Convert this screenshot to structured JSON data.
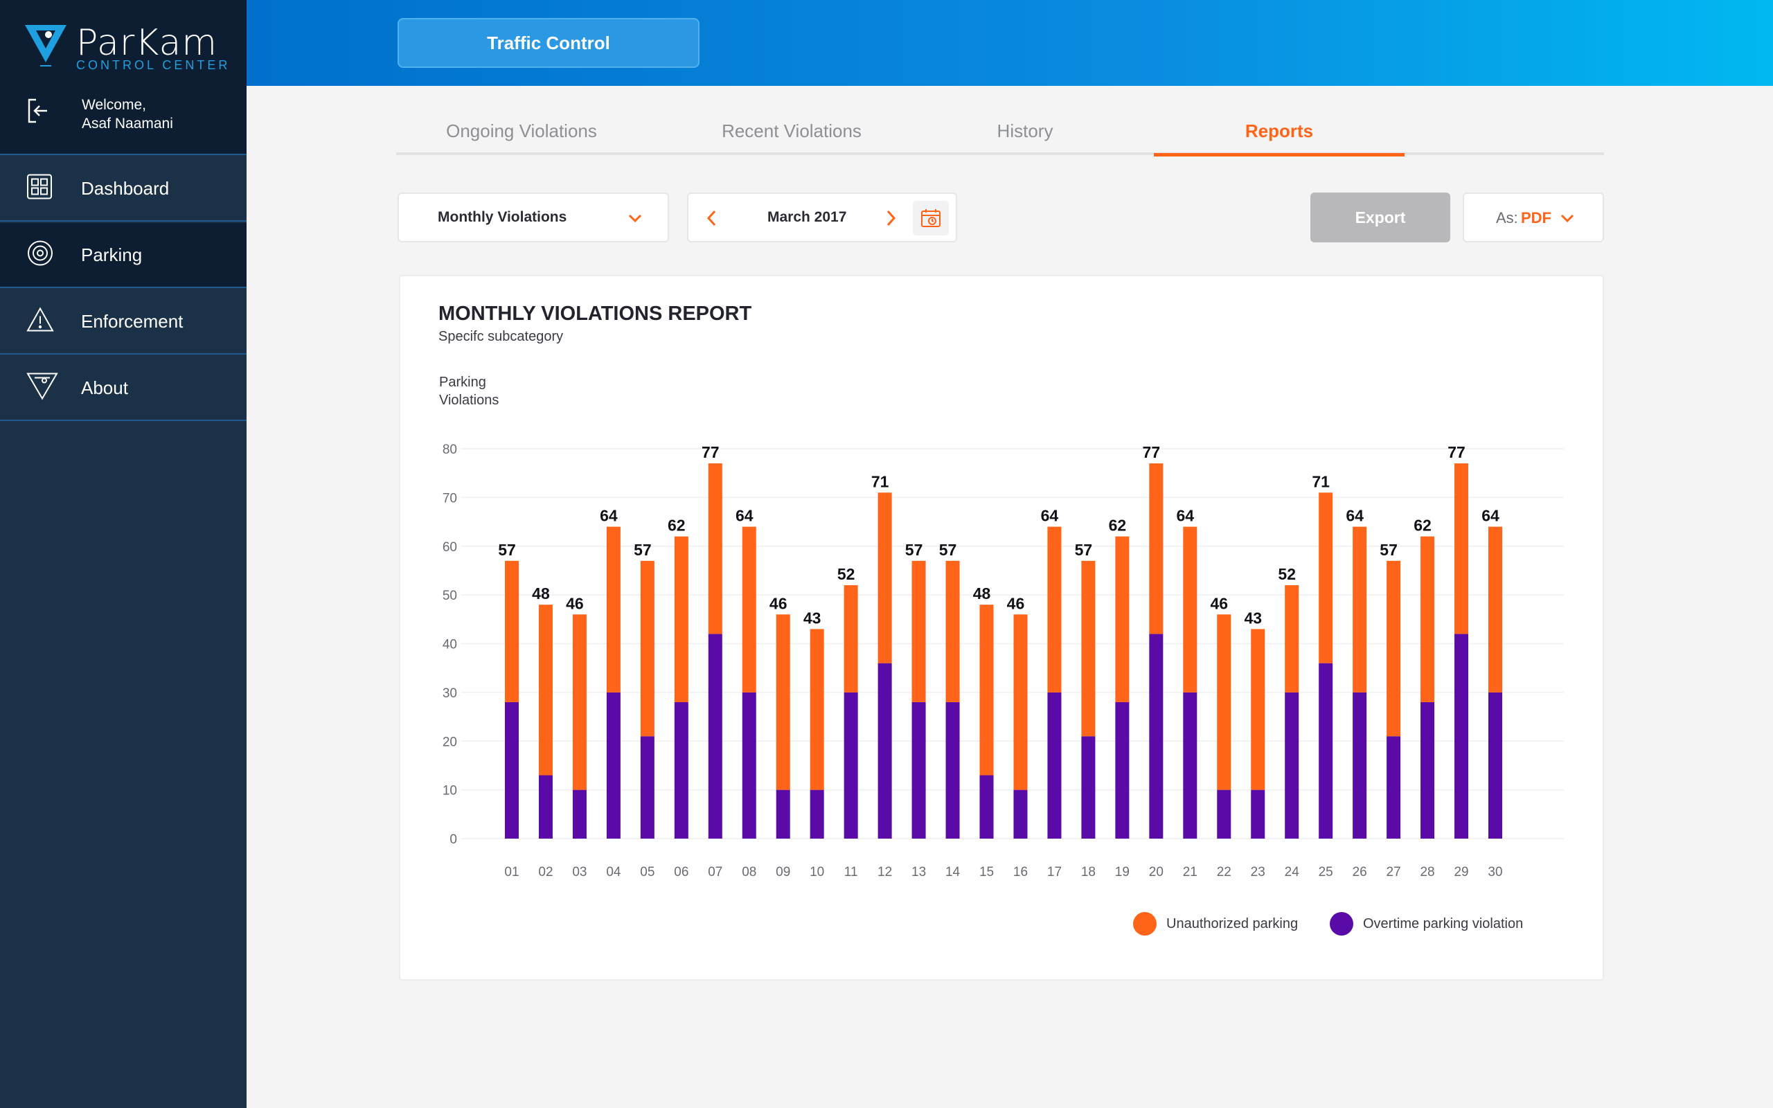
{
  "app": {
    "logo_text": "ParKam",
    "logo_sub": "CONTROL CENTER",
    "welcome_line1": "Welcome,",
    "welcome_line2": "Asaf Naamani"
  },
  "sidebar": {
    "items": [
      {
        "label": "Dashboard",
        "icon": "dashboard-icon"
      },
      {
        "label": "Parking",
        "icon": "target-icon"
      },
      {
        "label": "Enforcement",
        "icon": "warning-icon"
      },
      {
        "label": "About",
        "icon": "parkam-logo-icon"
      }
    ]
  },
  "header": {
    "button_label": "Traffic Control"
  },
  "tabs": [
    {
      "label": "Ongoing Violations"
    },
    {
      "label": "Recent Violations"
    },
    {
      "label": "History"
    },
    {
      "label": "Reports"
    }
  ],
  "controls": {
    "report_select": "Monthly Violations",
    "period": "March 2017",
    "export_label": "Export",
    "format_prefix": "As:",
    "format_value": "PDF"
  },
  "colors": {
    "accent": "#ff6418",
    "unauthorized": "#ff6418",
    "overtime": "#5a0aa6"
  },
  "chart_data": {
    "type": "bar",
    "stacked": true,
    "title": "MONTHLY VIOLATIONS REPORT",
    "subtitle": "Specifc subcategory",
    "ylabel_line1": "Parking",
    "ylabel_line2": "Violations",
    "ylim": [
      0,
      80
    ],
    "yticks": [
      0,
      10,
      20,
      30,
      40,
      50,
      60,
      70,
      80
    ],
    "categories": [
      "01",
      "02",
      "03",
      "04",
      "05",
      "06",
      "07",
      "08",
      "09",
      "10",
      "11",
      "12",
      "13",
      "14",
      "15",
      "16",
      "17",
      "18",
      "19",
      "20",
      "21",
      "22",
      "23",
      "24",
      "25",
      "26",
      "27",
      "28",
      "29",
      "30"
    ],
    "totals": [
      57,
      48,
      46,
      64,
      57,
      62,
      77,
      64,
      46,
      43,
      52,
      71,
      57,
      57,
      48,
      46,
      64,
      57,
      62,
      77,
      64,
      46,
      43,
      52,
      71,
      64,
      57,
      62,
      77,
      64
    ],
    "series": [
      {
        "name": "Overtime parking violation",
        "values": [
          28,
          13,
          10,
          30,
          21,
          28,
          42,
          30,
          10,
          10,
          30,
          36,
          28,
          28,
          13,
          10,
          30,
          21,
          28,
          42,
          30,
          10,
          10,
          30,
          36,
          30,
          21,
          28,
          42,
          30
        ]
      },
      {
        "name": "Unauthorized parking",
        "values": [
          29,
          35,
          36,
          34,
          36,
          34,
          35,
          34,
          36,
          33,
          22,
          35,
          29,
          29,
          35,
          36,
          34,
          36,
          34,
          35,
          34,
          36,
          33,
          22,
          35,
          34,
          36,
          34,
          35,
          34
        ]
      }
    ],
    "legend": [
      "Unauthorized parking",
      "Overtime parking violation"
    ]
  }
}
